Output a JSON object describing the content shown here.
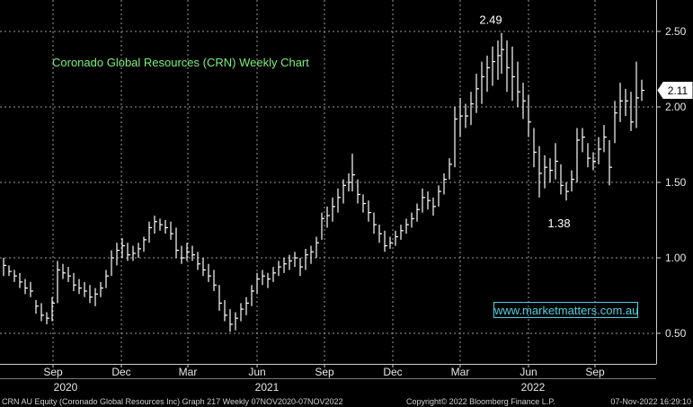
{
  "chart_data": {
    "type": "bar",
    "title": "Coronado Global Resources (CRN) Weekly Chart",
    "ylim": [
      0.38,
      2.62
    ],
    "yticks": [
      0.5,
      1.0,
      1.5,
      2.0,
      2.5
    ],
    "ytick_labels": [
      "0.50",
      "1.00",
      "1.50",
      "2.00",
      "2.50"
    ],
    "xlim": [
      0,
      730
    ],
    "x_months": [
      {
        "label": "Sep",
        "x": 59
      },
      {
        "label": "Dec",
        "x": 135
      },
      {
        "label": "Mar",
        "x": 209
      },
      {
        "label": "Jun",
        "x": 286
      },
      {
        "label": "Sep",
        "x": 361
      },
      {
        "label": "Dec",
        "x": 437
      },
      {
        "label": "Mar",
        "x": 512
      },
      {
        "label": "Jun",
        "x": 588
      },
      {
        "label": "Sep",
        "x": 662
      }
    ],
    "x_years": [
      {
        "label": "2020",
        "x": 73
      },
      {
        "label": "2021",
        "x": 297
      },
      {
        "label": "2022",
        "x": 593
      }
    ],
    "annotations": [
      {
        "text": "2.49",
        "value": 2.49,
        "x": 546
      },
      {
        "text": "1.38",
        "value": 1.38,
        "x": 622
      }
    ],
    "last_price": {
      "text": "2.11",
      "value": 2.11
    },
    "bars": [
      {
        "x": 4,
        "h": 1.0,
        "l": 0.88,
        "c": 0.95
      },
      {
        "x": 10,
        "h": 0.95,
        "l": 0.88,
        "c": 0.91
      },
      {
        "x": 16,
        "h": 0.92,
        "l": 0.84,
        "c": 0.88
      },
      {
        "x": 22,
        "h": 0.9,
        "l": 0.8,
        "c": 0.84
      },
      {
        "x": 28,
        "h": 0.86,
        "l": 0.76,
        "c": 0.8
      },
      {
        "x": 34,
        "h": 0.84,
        "l": 0.74,
        "c": 0.78
      },
      {
        "x": 40,
        "h": 0.72,
        "l": 0.63,
        "c": 0.68
      },
      {
        "x": 46,
        "h": 0.7,
        "l": 0.58,
        "c": 0.62
      },
      {
        "x": 52,
        "h": 0.64,
        "l": 0.56,
        "c": 0.6
      },
      {
        "x": 58,
        "h": 0.74,
        "l": 0.58,
        "c": 0.7
      },
      {
        "x": 64,
        "h": 0.98,
        "l": 0.7,
        "c": 0.92
      },
      {
        "x": 70,
        "h": 0.96,
        "l": 0.86,
        "c": 0.9
      },
      {
        "x": 76,
        "h": 0.94,
        "l": 0.84,
        "c": 0.88
      },
      {
        "x": 82,
        "h": 0.9,
        "l": 0.78,
        "c": 0.82
      },
      {
        "x": 88,
        "h": 0.86,
        "l": 0.76,
        "c": 0.8
      },
      {
        "x": 94,
        "h": 0.84,
        "l": 0.74,
        "c": 0.78
      },
      {
        "x": 100,
        "h": 0.82,
        "l": 0.7,
        "c": 0.74
      },
      {
        "x": 106,
        "h": 0.8,
        "l": 0.68,
        "c": 0.76
      },
      {
        "x": 112,
        "h": 0.84,
        "l": 0.74,
        "c": 0.8
      },
      {
        "x": 118,
        "h": 0.92,
        "l": 0.8,
        "c": 0.88
      },
      {
        "x": 124,
        "h": 1.05,
        "l": 0.88,
        "c": 1.0
      },
      {
        "x": 130,
        "h": 1.1,
        "l": 0.95,
        "c": 1.05
      },
      {
        "x": 136,
        "h": 1.13,
        "l": 1.0,
        "c": 1.08
      },
      {
        "x": 142,
        "h": 1.1,
        "l": 0.98,
        "c": 1.02
      },
      {
        "x": 148,
        "h": 1.08,
        "l": 0.98,
        "c": 1.03
      },
      {
        "x": 154,
        "h": 1.1,
        "l": 1.0,
        "c": 1.06
      },
      {
        "x": 160,
        "h": 1.14,
        "l": 1.04,
        "c": 1.12
      },
      {
        "x": 166,
        "h": 1.24,
        "l": 1.1,
        "c": 1.2
      },
      {
        "x": 172,
        "h": 1.28,
        "l": 1.16,
        "c": 1.24
      },
      {
        "x": 178,
        "h": 1.26,
        "l": 1.18,
        "c": 1.22
      },
      {
        "x": 184,
        "h": 1.25,
        "l": 1.16,
        "c": 1.2
      },
      {
        "x": 190,
        "h": 1.24,
        "l": 1.12,
        "c": 1.16
      },
      {
        "x": 196,
        "h": 1.2,
        "l": 1.0,
        "c": 1.05
      },
      {
        "x": 202,
        "h": 1.08,
        "l": 0.96,
        "c": 1.0
      },
      {
        "x": 208,
        "h": 1.1,
        "l": 0.98,
        "c": 1.04
      },
      {
        "x": 214,
        "h": 1.08,
        "l": 0.98,
        "c": 1.02
      },
      {
        "x": 220,
        "h": 1.04,
        "l": 0.92,
        "c": 0.96
      },
      {
        "x": 226,
        "h": 1.0,
        "l": 0.88,
        "c": 0.92
      },
      {
        "x": 232,
        "h": 0.96,
        "l": 0.84,
        "c": 0.88
      },
      {
        "x": 238,
        "h": 0.92,
        "l": 0.78,
        "c": 0.82
      },
      {
        "x": 244,
        "h": 0.82,
        "l": 0.65,
        "c": 0.7
      },
      {
        "x": 250,
        "h": 0.72,
        "l": 0.58,
        "c": 0.62
      },
      {
        "x": 256,
        "h": 0.66,
        "l": 0.51,
        "c": 0.56
      },
      {
        "x": 262,
        "h": 0.64,
        "l": 0.52,
        "c": 0.6
      },
      {
        "x": 268,
        "h": 0.7,
        "l": 0.58,
        "c": 0.66
      },
      {
        "x": 274,
        "h": 0.74,
        "l": 0.62,
        "c": 0.7
      },
      {
        "x": 280,
        "h": 0.82,
        "l": 0.68,
        "c": 0.78
      },
      {
        "x": 286,
        "h": 0.9,
        "l": 0.76,
        "c": 0.86
      },
      {
        "x": 292,
        "h": 0.92,
        "l": 0.82,
        "c": 0.88
      },
      {
        "x": 298,
        "h": 0.9,
        "l": 0.8,
        "c": 0.86
      },
      {
        "x": 304,
        "h": 0.94,
        "l": 0.84,
        "c": 0.9
      },
      {
        "x": 310,
        "h": 0.98,
        "l": 0.88,
        "c": 0.94
      },
      {
        "x": 316,
        "h": 1.0,
        "l": 0.9,
        "c": 0.96
      },
      {
        "x": 322,
        "h": 1.02,
        "l": 0.92,
        "c": 0.98
      },
      {
        "x": 328,
        "h": 1.04,
        "l": 0.94,
        "c": 1.0
      },
      {
        "x": 334,
        "h": 1.0,
        "l": 0.88,
        "c": 0.94
      },
      {
        "x": 340,
        "h": 1.06,
        "l": 0.92,
        "c": 1.02
      },
      {
        "x": 346,
        "h": 1.08,
        "l": 0.96,
        "c": 1.04
      },
      {
        "x": 352,
        "h": 1.14,
        "l": 1.0,
        "c": 1.1
      },
      {
        "x": 358,
        "h": 1.3,
        "l": 1.12,
        "c": 1.26
      },
      {
        "x": 364,
        "h": 1.34,
        "l": 1.2,
        "c": 1.28
      },
      {
        "x": 370,
        "h": 1.4,
        "l": 1.24,
        "c": 1.34
      },
      {
        "x": 376,
        "h": 1.46,
        "l": 1.3,
        "c": 1.4
      },
      {
        "x": 382,
        "h": 1.52,
        "l": 1.36,
        "c": 1.48
      },
      {
        "x": 388,
        "h": 1.56,
        "l": 1.44,
        "c": 1.5
      },
      {
        "x": 392,
        "h": 1.69,
        "l": 1.44,
        "c": 1.55
      },
      {
        "x": 398,
        "h": 1.52,
        "l": 1.36,
        "c": 1.42
      },
      {
        "x": 404,
        "h": 1.42,
        "l": 1.3,
        "c": 1.36
      },
      {
        "x": 410,
        "h": 1.38,
        "l": 1.24,
        "c": 1.3
      },
      {
        "x": 416,
        "h": 1.3,
        "l": 1.16,
        "c": 1.22
      },
      {
        "x": 422,
        "h": 1.22,
        "l": 1.1,
        "c": 1.16
      },
      {
        "x": 428,
        "h": 1.18,
        "l": 1.04,
        "c": 1.08
      },
      {
        "x": 434,
        "h": 1.14,
        "l": 1.06,
        "c": 1.1
      },
      {
        "x": 440,
        "h": 1.18,
        "l": 1.08,
        "c": 1.14
      },
      {
        "x": 446,
        "h": 1.22,
        "l": 1.12,
        "c": 1.18
      },
      {
        "x": 452,
        "h": 1.26,
        "l": 1.16,
        "c": 1.22
      },
      {
        "x": 458,
        "h": 1.3,
        "l": 1.2,
        "c": 1.26
      },
      {
        "x": 464,
        "h": 1.36,
        "l": 1.24,
        "c": 1.32
      },
      {
        "x": 470,
        "h": 1.46,
        "l": 1.3,
        "c": 1.4
      },
      {
        "x": 476,
        "h": 1.44,
        "l": 1.32,
        "c": 1.38
      },
      {
        "x": 482,
        "h": 1.4,
        "l": 1.28,
        "c": 1.34
      },
      {
        "x": 488,
        "h": 1.48,
        "l": 1.34,
        "c": 1.44
      },
      {
        "x": 494,
        "h": 1.56,
        "l": 1.42,
        "c": 1.52
      },
      {
        "x": 500,
        "h": 1.66,
        "l": 1.52,
        "c": 1.62
      },
      {
        "x": 506,
        "h": 2.0,
        "l": 1.6,
        "c": 1.92
      },
      {
        "x": 512,
        "h": 2.06,
        "l": 1.8,
        "c": 1.94
      },
      {
        "x": 518,
        "h": 2.02,
        "l": 1.86,
        "c": 1.94
      },
      {
        "x": 524,
        "h": 2.1,
        "l": 1.88,
        "c": 2.02
      },
      {
        "x": 530,
        "h": 2.22,
        "l": 1.96,
        "c": 2.12
      },
      {
        "x": 536,
        "h": 2.3,
        "l": 2.02,
        "c": 2.2
      },
      {
        "x": 542,
        "h": 2.34,
        "l": 2.1,
        "c": 2.26
      },
      {
        "x": 548,
        "h": 2.4,
        "l": 2.14,
        "c": 2.3
      },
      {
        "x": 554,
        "h": 2.44,
        "l": 2.18,
        "c": 2.34
      },
      {
        "x": 558,
        "h": 2.49,
        "l": 2.22,
        "c": 2.38
      },
      {
        "x": 564,
        "h": 2.44,
        "l": 2.1,
        "c": 2.26
      },
      {
        "x": 570,
        "h": 2.4,
        "l": 2.04,
        "c": 2.2
      },
      {
        "x": 576,
        "h": 2.3,
        "l": 2.0,
        "c": 2.1
      },
      {
        "x": 582,
        "h": 2.16,
        "l": 1.92,
        "c": 2.04
      },
      {
        "x": 588,
        "h": 2.08,
        "l": 1.8,
        "c": 1.9
      },
      {
        "x": 594,
        "h": 1.86,
        "l": 1.6,
        "c": 1.7
      },
      {
        "x": 600,
        "h": 1.74,
        "l": 1.4,
        "c": 1.56
      },
      {
        "x": 606,
        "h": 1.68,
        "l": 1.46,
        "c": 1.6
      },
      {
        "x": 612,
        "h": 1.66,
        "l": 1.5,
        "c": 1.58
      },
      {
        "x": 618,
        "h": 1.76,
        "l": 1.52,
        "c": 1.64
      },
      {
        "x": 624,
        "h": 1.62,
        "l": 1.42,
        "c": 1.48
      },
      {
        "x": 630,
        "h": 1.5,
        "l": 1.38,
        "c": 1.44
      },
      {
        "x": 636,
        "h": 1.58,
        "l": 1.44,
        "c": 1.52
      },
      {
        "x": 642,
        "h": 1.86,
        "l": 1.5,
        "c": 1.78
      },
      {
        "x": 648,
        "h": 1.86,
        "l": 1.7,
        "c": 1.8
      },
      {
        "x": 654,
        "h": 1.76,
        "l": 1.6,
        "c": 1.66
      },
      {
        "x": 660,
        "h": 1.7,
        "l": 1.58,
        "c": 1.64
      },
      {
        "x": 666,
        "h": 1.8,
        "l": 1.62,
        "c": 1.72
      },
      {
        "x": 672,
        "h": 1.88,
        "l": 1.7,
        "c": 1.8
      },
      {
        "x": 678,
        "h": 1.78,
        "l": 1.48,
        "c": 1.6
      },
      {
        "x": 684,
        "h": 2.04,
        "l": 1.76,
        "c": 1.96
      },
      {
        "x": 690,
        "h": 2.16,
        "l": 1.9,
        "c": 2.04
      },
      {
        "x": 696,
        "h": 2.12,
        "l": 1.94,
        "c": 2.04
      },
      {
        "x": 702,
        "h": 2.1,
        "l": 1.84,
        "c": 1.9
      },
      {
        "x": 708,
        "h": 2.3,
        "l": 1.86,
        "c": 2.06
      },
      {
        "x": 714,
        "h": 2.18,
        "l": 2.04,
        "c": 2.11
      }
    ]
  },
  "watermark": "www.marketmatters.com.au",
  "footer": {
    "left": "CRN AU Equity (Coronado Global Resources Inc) Graph 217  Weekly 07NOV2020-07NOV2022",
    "center": "Copyright© 2022 Bloomberg Finance L.P.",
    "right": "07-Nov-2022 16:29:10"
  },
  "colors": {
    "background": "#000000",
    "grid": "#9a9a9a",
    "bars": "#ffffff",
    "title": "#7cf07c",
    "watermark": "#4fd1e0"
  }
}
